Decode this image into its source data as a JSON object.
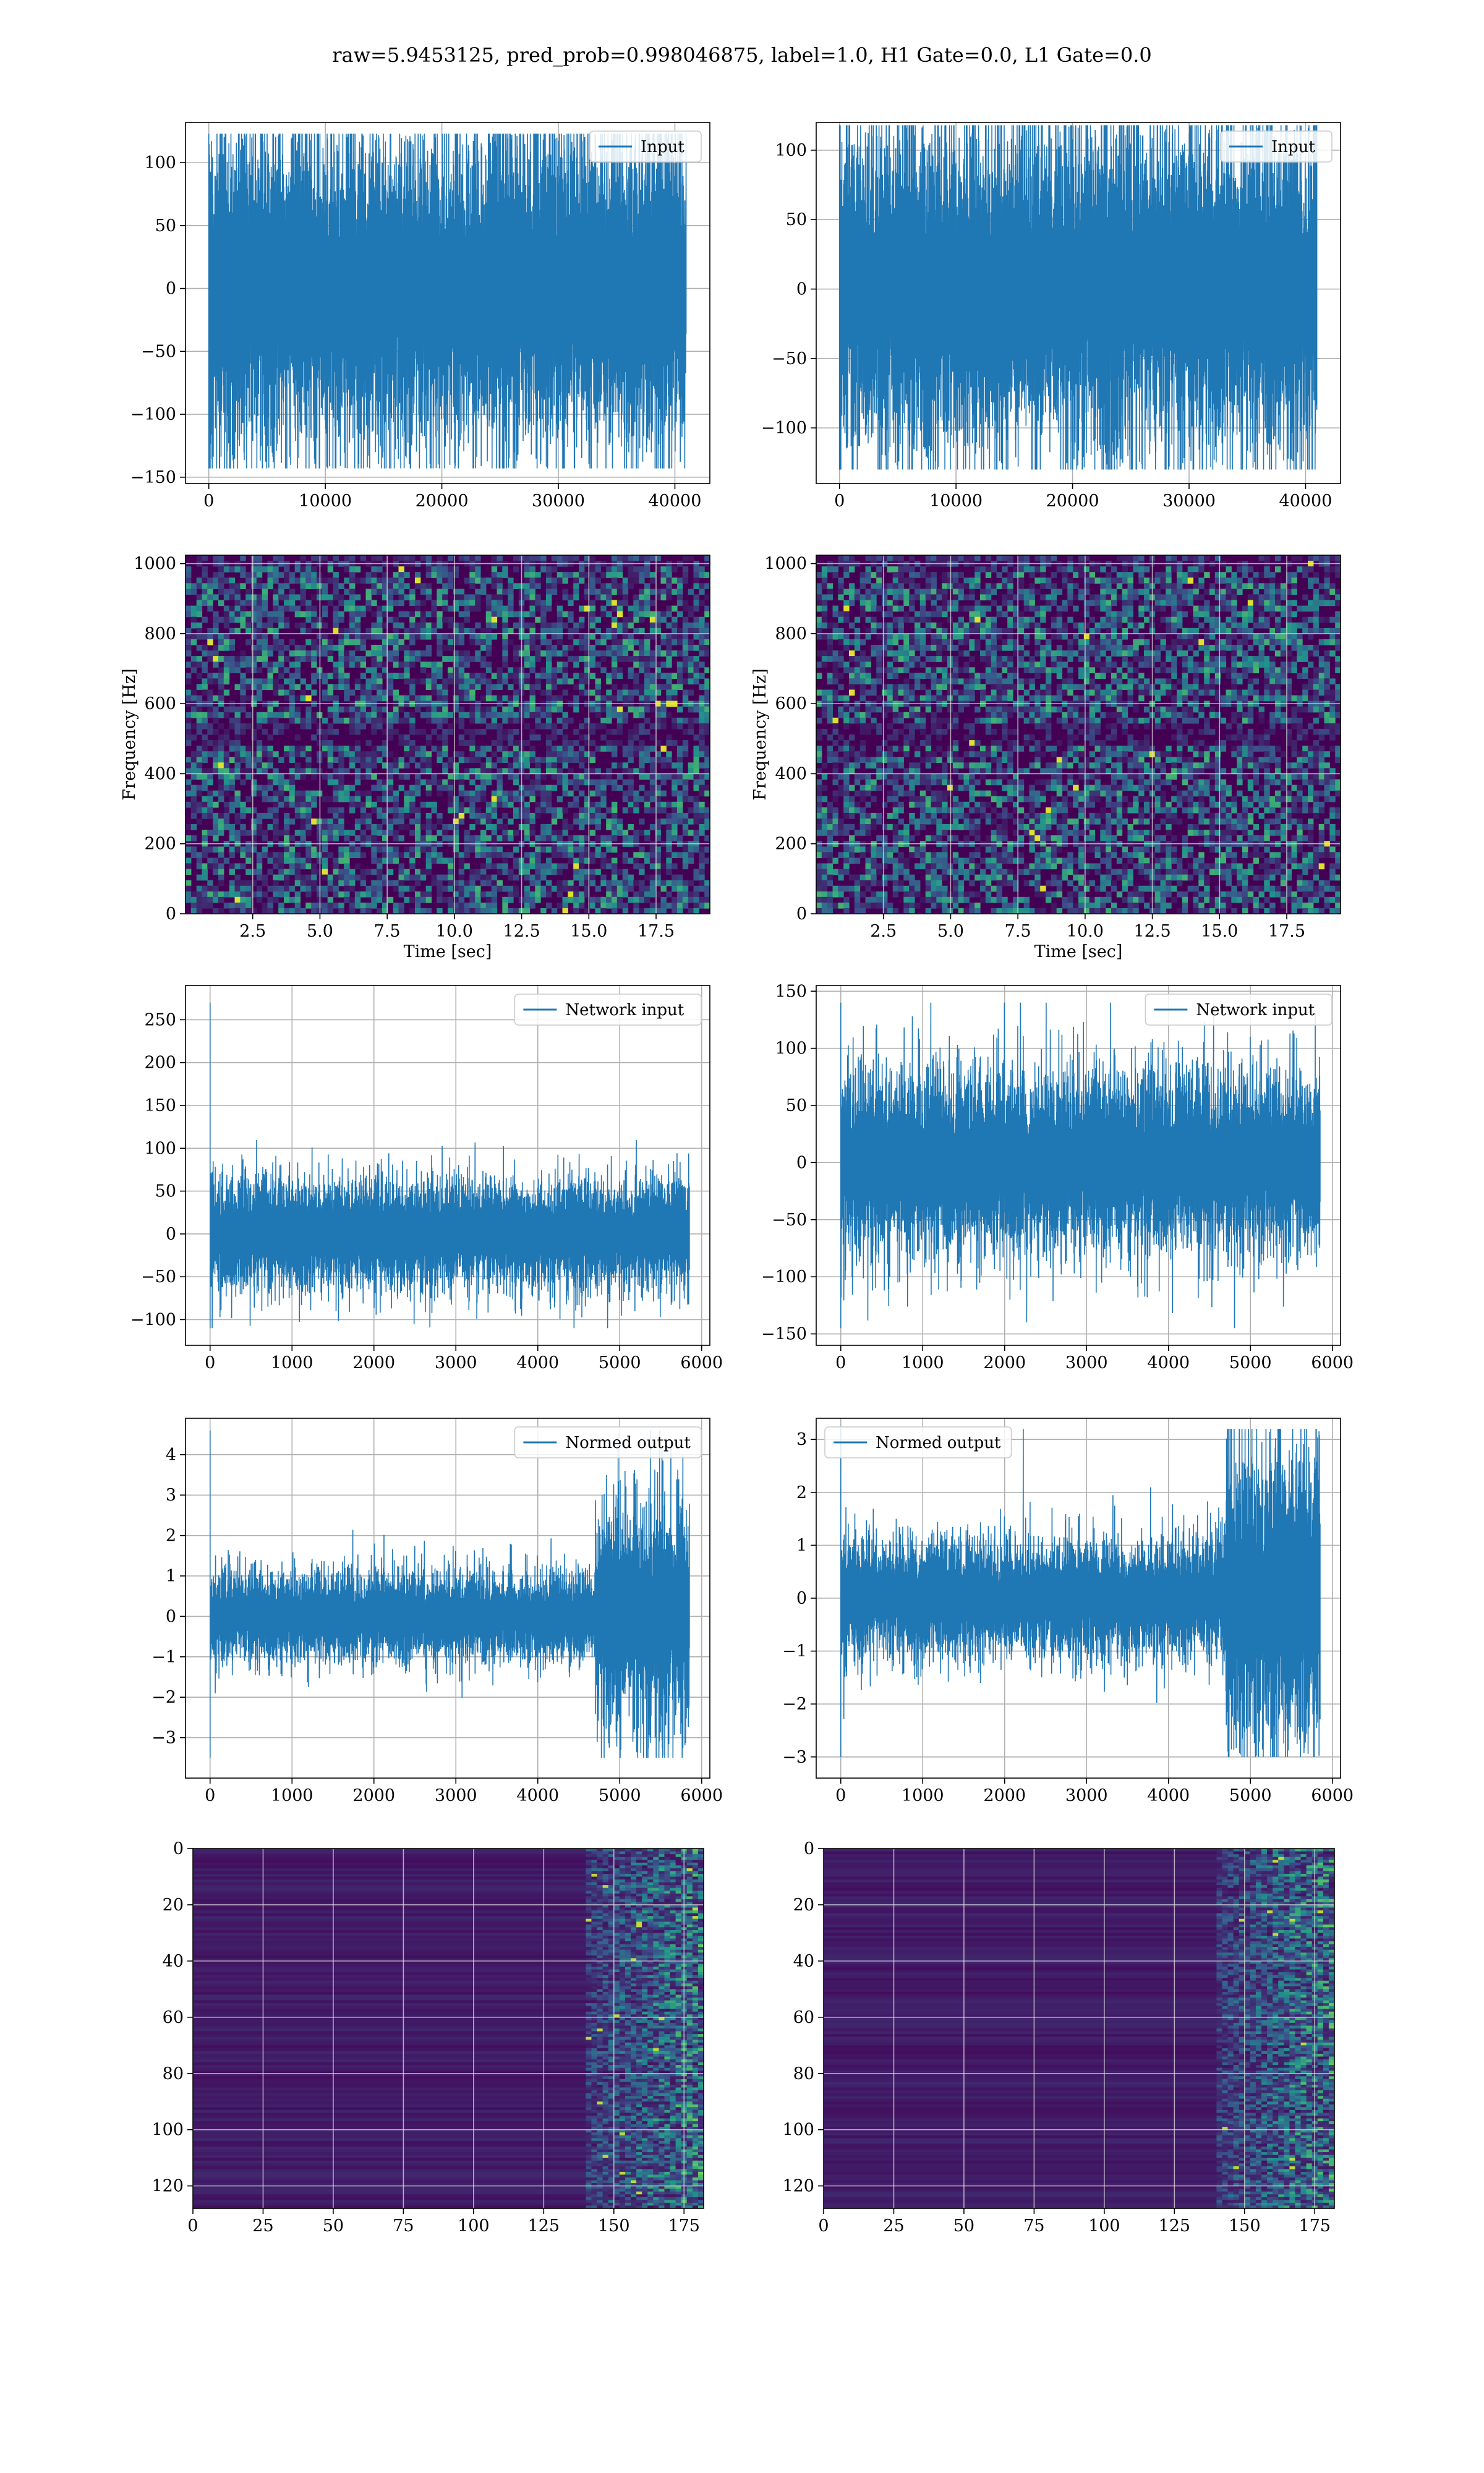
{
  "figure": {
    "title": "raw=5.9453125, pred_prob=0.998046875, label=1.0, H1 Gate=0.0, L1 Gate=0.0"
  },
  "colors": {
    "series": "#1f77b4",
    "grid": "#b0b0b0",
    "viridis_low": "#440154",
    "viridis_mid": "#21908d",
    "viridis_high": "#fde725"
  },
  "chart_data": [
    {
      "id": "input-h1",
      "type": "line",
      "legend": "Input",
      "legend_position": "top-right",
      "xlabel": "",
      "ylabel": "",
      "grid": true,
      "xlim": [
        -2000,
        43000
      ],
      "ylim": [
        -155,
        132
      ],
      "xticks": [
        0,
        10000,
        20000,
        30000,
        40000
      ],
      "yticks": [
        -150,
        -100,
        -50,
        0,
        50,
        100
      ],
      "signal": {
        "x_start": 0,
        "x_end": 40960,
        "amplitude": 65,
        "min": -143,
        "max": 123
      }
    },
    {
      "id": "input-l1",
      "type": "line",
      "legend": "Input",
      "legend_position": "top-right",
      "xlabel": "",
      "ylabel": "",
      "grid": true,
      "xlim": [
        -2000,
        43000
      ],
      "ylim": [
        -140,
        120
      ],
      "xticks": [
        0,
        10000,
        20000,
        30000,
        40000
      ],
      "yticks": [
        -100,
        -50,
        0,
        50,
        100
      ],
      "signal": {
        "x_start": 0,
        "x_end": 40960,
        "amplitude": 60,
        "min": -130,
        "max": 118
      }
    },
    {
      "id": "spectrogram-h1",
      "type": "heatmap",
      "colormap": "viridis",
      "xlabel": "Time [sec]",
      "ylabel": "Frequency [Hz]",
      "grid": true,
      "xlim": [
        0,
        19.5
      ],
      "ylim": [
        0,
        1024
      ],
      "xticks": [
        "2.5",
        "5.0",
        "7.5",
        "10.0",
        "12.5",
        "15.0",
        "17.5"
      ],
      "yticks": [
        0,
        200,
        400,
        600,
        800,
        1000
      ]
    },
    {
      "id": "spectrogram-l1",
      "type": "heatmap",
      "colormap": "viridis",
      "xlabel": "Time [sec]",
      "ylabel": "Frequency [Hz]",
      "grid": true,
      "xlim": [
        0,
        19.5
      ],
      "ylim": [
        0,
        1024
      ],
      "xticks": [
        "2.5",
        "5.0",
        "7.5",
        "10.0",
        "12.5",
        "15.0",
        "17.5"
      ],
      "yticks": [
        0,
        200,
        400,
        600,
        800,
        1000
      ]
    },
    {
      "id": "network-input-h1",
      "type": "line",
      "legend": "Network input",
      "legend_position": "top-right",
      "xlabel": "",
      "ylabel": "",
      "grid": true,
      "xlim": [
        -300,
        6100
      ],
      "ylim": [
        -130,
        290
      ],
      "xticks": [
        0,
        1000,
        2000,
        3000,
        4000,
        5000,
        6000
      ],
      "yticks": [
        -100,
        -50,
        0,
        50,
        100,
        150,
        200,
        250
      ],
      "signal": {
        "x_start": 0,
        "x_end": 5850,
        "amplitude": 32,
        "min": -110,
        "max": 270
      }
    },
    {
      "id": "network-input-l1",
      "type": "line",
      "legend": "Network input",
      "legend_position": "top-right",
      "xlabel": "",
      "ylabel": "",
      "grid": true,
      "xlim": [
        -300,
        6100
      ],
      "ylim": [
        -160,
        155
      ],
      "xticks": [
        0,
        1000,
        2000,
        3000,
        4000,
        5000,
        6000
      ],
      "yticks": [
        -150,
        -100,
        -50,
        0,
        50,
        100,
        150
      ],
      "signal": {
        "x_start": 0,
        "x_end": 5850,
        "amplitude": 40,
        "min": -145,
        "max": 140
      }
    },
    {
      "id": "normed-output-h1",
      "type": "line",
      "legend": "Normed output",
      "legend_position": "top-right",
      "xlabel": "",
      "ylabel": "",
      "grid": true,
      "xlim": [
        -300,
        6100
      ],
      "ylim": [
        -4,
        4.9
      ],
      "xticks": [
        0,
        1000,
        2000,
        3000,
        4000,
        5000,
        6000
      ],
      "yticks": [
        -3,
        -2,
        -1,
        0,
        1,
        2,
        3,
        4
      ],
      "signal": {
        "x_start": 0,
        "x_end": 5850,
        "amplitude": 0.55,
        "burst_start": 4700,
        "burst_amplitude": 1.4,
        "min": -3.5,
        "max": 4.6
      }
    },
    {
      "id": "normed-output-l1",
      "type": "line",
      "legend": "Normed output",
      "legend_position": "top-left",
      "xlabel": "",
      "ylabel": "",
      "grid": true,
      "xlim": [
        -300,
        6100
      ],
      "ylim": [
        -3.4,
        3.4
      ],
      "xticks": [
        0,
        1000,
        2000,
        3000,
        4000,
        5000,
        6000
      ],
      "yticks": [
        -3,
        -2,
        -1,
        0,
        1,
        2,
        3
      ],
      "signal": {
        "x_start": 0,
        "x_end": 5850,
        "amplitude": 0.55,
        "burst_start": 4700,
        "burst_amplitude": 1.4,
        "min": -3.0,
        "max": 3.2
      }
    },
    {
      "id": "feature-map-h1",
      "type": "heatmap",
      "colormap": "viridis",
      "xlabel": "",
      "ylabel": "",
      "grid": true,
      "xlim": [
        0,
        182
      ],
      "ylim": [
        128,
        0
      ],
      "xticks": [
        0,
        25,
        50,
        75,
        100,
        125,
        150,
        175
      ],
      "yticks": [
        0,
        20,
        40,
        60,
        80,
        100,
        120
      ],
      "activity_onset": 140
    },
    {
      "id": "feature-map-l1",
      "type": "heatmap",
      "colormap": "viridis",
      "xlabel": "",
      "ylabel": "",
      "grid": true,
      "xlim": [
        0,
        182
      ],
      "ylim": [
        128,
        0
      ],
      "xticks": [
        0,
        25,
        50,
        75,
        100,
        125,
        150,
        175
      ],
      "yticks": [
        0,
        20,
        40,
        60,
        80,
        100,
        120
      ],
      "activity_onset": 140
    }
  ]
}
